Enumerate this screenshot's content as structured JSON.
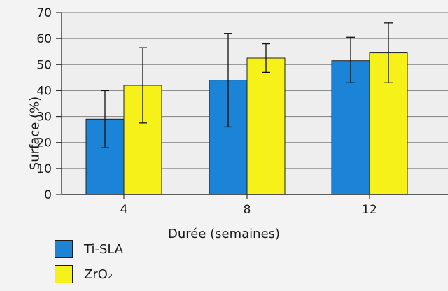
{
  "chart_data": {
    "type": "bar",
    "categories": [
      "4",
      "8",
      "12"
    ],
    "series": [
      {
        "name": "Ti-SLA",
        "values": [
          29,
          44,
          51.5
        ],
        "error_low": [
          18,
          26,
          43
        ],
        "error_high": [
          40,
          62,
          60.5
        ],
        "color": "#1b84d6"
      },
      {
        "name": "ZrO₂",
        "values": [
          42,
          52.5,
          54.5
        ],
        "error_low": [
          27.5,
          47,
          43
        ],
        "error_high": [
          56.5,
          58,
          66
        ],
        "color": "#f6f219"
      }
    ],
    "xlabel": "Durée (semaines)",
    "ylabel": "Surface (%)",
    "ylim": [
      0,
      70
    ],
    "yticks": [
      "0",
      "10",
      "20",
      "30",
      "40",
      "50",
      "60",
      "70"
    ],
    "grid": true,
    "legend_position": "bottom-left",
    "plot_background": "#eeeeee",
    "grid_color": "#8e8e8e"
  }
}
